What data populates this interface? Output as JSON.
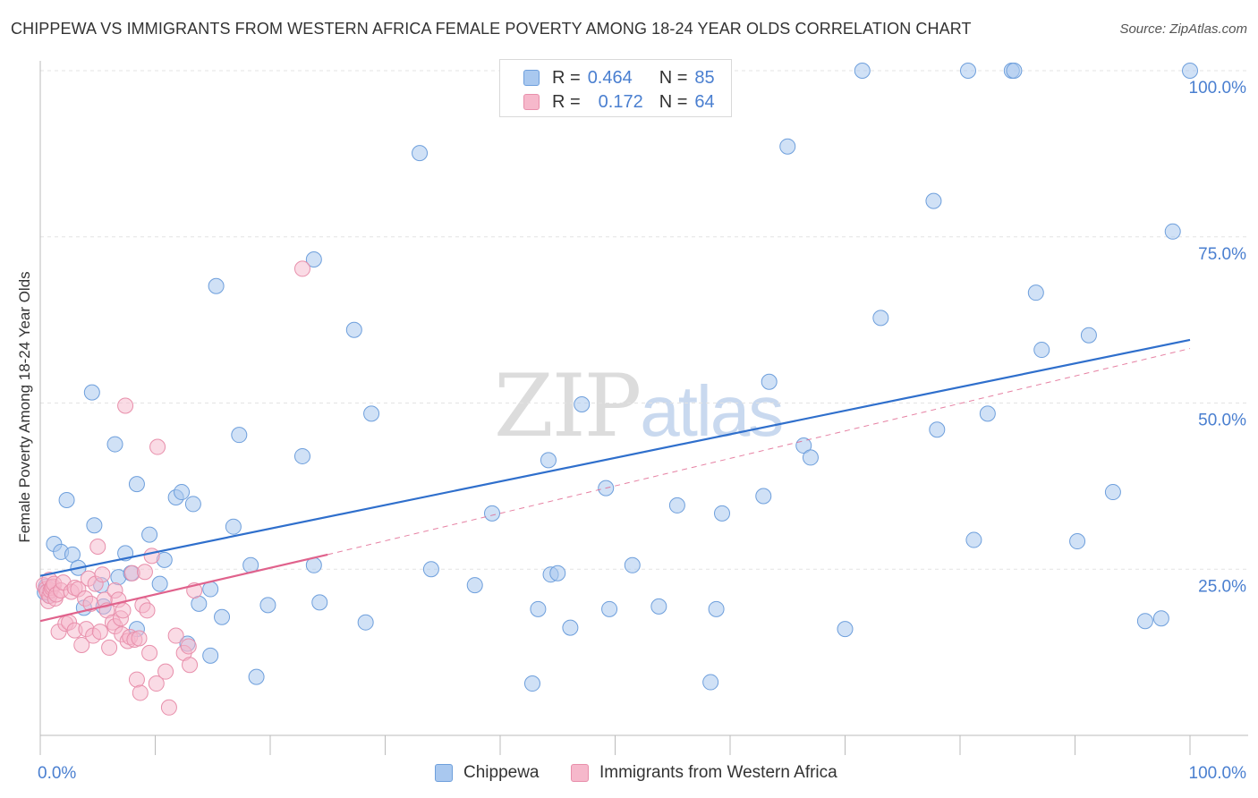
{
  "header": {
    "title": "CHIPPEWA VS IMMIGRANTS FROM WESTERN AFRICA FEMALE POVERTY AMONG 18-24 YEAR OLDS CORRELATION CHART",
    "source": "Source: ZipAtlas.com"
  },
  "watermark": {
    "zip": "ZIP",
    "atlas": "atlas"
  },
  "legend": {
    "rows": [
      {
        "r_label": "R =",
        "r_value": "0.464",
        "n_label": "N =",
        "n_value": "85"
      },
      {
        "r_label": "R =",
        "r_value": "0.172",
        "n_label": "N =",
        "n_value": "64"
      }
    ]
  },
  "bottom_legend": {
    "series1": "Chippewa",
    "series2": "Immigrants from Western Africa"
  },
  "colors": {
    "series1_fill": "#a9c8ef",
    "series1_stroke": "#6e9fdc",
    "series1_line": "#2f6fcc",
    "series2_fill": "#f6b8cb",
    "series2_stroke": "#e88fab",
    "series2_line": "#e0628c",
    "tick_label": "#4a7fd0",
    "grid": "#e3e3e3",
    "axis": "#bbbbbb"
  },
  "chart_data": {
    "type": "scatter",
    "title": "CHIPPEWA VS IMMIGRANTS FROM WESTERN AFRICA FEMALE POVERTY AMONG 18-24 YEAR OLDS CORRELATION CHART",
    "xlabel": "",
    "ylabel": "Female Poverty Among 18-24 Year Olds",
    "xlim": [
      0,
      100
    ],
    "ylim": [
      0,
      100
    ],
    "x_tick_labels": [
      "0.0%",
      "100.0%"
    ],
    "y_tick_labels": [
      {
        "value": 100,
        "label": "100.0%"
      },
      {
        "value": 75,
        "label": "75.0%"
      },
      {
        "value": 50,
        "label": "50.0%"
      },
      {
        "value": 25,
        "label": "25.0%"
      }
    ],
    "series": [
      {
        "name": "Chippewa",
        "r": 0.464,
        "n": 85,
        "trend": {
          "x": [
            0,
            100
          ],
          "y": [
            24.0,
            59.5
          ],
          "style": "solid"
        },
        "points": [
          [
            0.5,
            22.4
          ],
          [
            0.8,
            21.0
          ],
          [
            0.4,
            21.5
          ],
          [
            1.2,
            28.8
          ],
          [
            1.8,
            27.6
          ],
          [
            2.3,
            35.4
          ],
          [
            2.8,
            27.2
          ],
          [
            3.3,
            25.2
          ],
          [
            3.8,
            19.2
          ],
          [
            4.5,
            51.6
          ],
          [
            4.7,
            31.6
          ],
          [
            5.3,
            22.6
          ],
          [
            5.5,
            19.4
          ],
          [
            6.5,
            43.8
          ],
          [
            6.8,
            23.8
          ],
          [
            7.4,
            27.4
          ],
          [
            7.9,
            24.4
          ],
          [
            8.4,
            16.0
          ],
          [
            8.4,
            37.8
          ],
          [
            9.5,
            30.2
          ],
          [
            10.4,
            22.8
          ],
          [
            10.8,
            26.4
          ],
          [
            11.8,
            35.8
          ],
          [
            12.3,
            36.6
          ],
          [
            12.8,
            13.8
          ],
          [
            13.3,
            34.8
          ],
          [
            13.8,
            19.8
          ],
          [
            14.8,
            12.0
          ],
          [
            14.8,
            22.0
          ],
          [
            15.3,
            67.6
          ],
          [
            15.8,
            17.8
          ],
          [
            16.8,
            31.4
          ],
          [
            17.3,
            45.2
          ],
          [
            18.3,
            25.6
          ],
          [
            18.8,
            8.8
          ],
          [
            19.8,
            19.6
          ],
          [
            22.8,
            42.0
          ],
          [
            23.8,
            71.6
          ],
          [
            23.8,
            25.6
          ],
          [
            24.3,
            20.0
          ],
          [
            27.3,
            61.0
          ],
          [
            28.3,
            17.0
          ],
          [
            28.8,
            48.4
          ],
          [
            33.0,
            87.6
          ],
          [
            34.0,
            25.0
          ],
          [
            37.8,
            22.6
          ],
          [
            39.3,
            33.4
          ],
          [
            42.8,
            7.8
          ],
          [
            43.3,
            19.0
          ],
          [
            44.2,
            41.4
          ],
          [
            44.4,
            24.2
          ],
          [
            45.0,
            24.4
          ],
          [
            46.1,
            16.2
          ],
          [
            47.1,
            49.8
          ],
          [
            49.2,
            37.2
          ],
          [
            49.5,
            19.0
          ],
          [
            51.5,
            25.6
          ],
          [
            53.8,
            19.4
          ],
          [
            55.4,
            34.6
          ],
          [
            58.3,
            8.0
          ],
          [
            58.8,
            19.0
          ],
          [
            59.3,
            33.4
          ],
          [
            62.9,
            36.0
          ],
          [
            63.4,
            53.2
          ],
          [
            65.0,
            88.6
          ],
          [
            66.4,
            43.6
          ],
          [
            67.0,
            41.8
          ],
          [
            70.0,
            16.0
          ],
          [
            71.5,
            100.0
          ],
          [
            73.1,
            62.8
          ],
          [
            77.7,
            80.4
          ],
          [
            78.0,
            46.0
          ],
          [
            80.7,
            100.0
          ],
          [
            81.2,
            29.4
          ],
          [
            82.4,
            48.4
          ],
          [
            84.5,
            100.0
          ],
          [
            84.7,
            100.0
          ],
          [
            86.6,
            66.6
          ],
          [
            87.1,
            58.0
          ],
          [
            90.2,
            29.2
          ],
          [
            91.2,
            60.2
          ],
          [
            93.3,
            36.6
          ],
          [
            96.1,
            17.2
          ],
          [
            97.5,
            17.6
          ],
          [
            98.5,
            75.8
          ],
          [
            100.0,
            100.0
          ]
        ]
      },
      {
        "name": "Immigrants from Western Africa",
        "r": 0.172,
        "n": 64,
        "trend": {
          "x": [
            0,
            25
          ],
          "y": [
            17.2,
            27.2
          ],
          "style": "solid",
          "extended": {
            "x": [
              25,
              100
            ],
            "y": [
              27.2,
              58.2
            ],
            "style": "dashed"
          }
        },
        "points": [
          [
            0.3,
            22.6
          ],
          [
            0.5,
            22.0
          ],
          [
            0.6,
            21.6
          ],
          [
            0.7,
            20.2
          ],
          [
            0.8,
            21.0
          ],
          [
            0.8,
            23.4
          ],
          [
            0.9,
            21.8
          ],
          [
            1.0,
            22.2
          ],
          [
            1.1,
            22.4
          ],
          [
            1.2,
            22.8
          ],
          [
            1.3,
            20.6
          ],
          [
            1.4,
            21.2
          ],
          [
            1.6,
            15.6
          ],
          [
            1.8,
            21.8
          ],
          [
            2.0,
            23.0
          ],
          [
            2.2,
            16.8
          ],
          [
            2.5,
            17.0
          ],
          [
            2.7,
            21.6
          ],
          [
            3.0,
            22.2
          ],
          [
            3.0,
            15.8
          ],
          [
            3.3,
            22.0
          ],
          [
            3.6,
            13.6
          ],
          [
            3.9,
            20.6
          ],
          [
            4.0,
            16.0
          ],
          [
            4.2,
            23.6
          ],
          [
            4.4,
            19.8
          ],
          [
            4.6,
            15.0
          ],
          [
            4.8,
            22.8
          ],
          [
            5.0,
            28.4
          ],
          [
            5.2,
            15.6
          ],
          [
            5.4,
            24.2
          ],
          [
            5.6,
            20.4
          ],
          [
            5.8,
            18.8
          ],
          [
            6.0,
            13.2
          ],
          [
            6.3,
            17.0
          ],
          [
            6.5,
            21.8
          ],
          [
            6.5,
            16.4
          ],
          [
            6.8,
            20.4
          ],
          [
            7.0,
            17.6
          ],
          [
            7.1,
            15.2
          ],
          [
            7.2,
            18.8
          ],
          [
            7.4,
            49.6
          ],
          [
            7.6,
            14.2
          ],
          [
            7.8,
            14.8
          ],
          [
            8.0,
            24.4
          ],
          [
            8.2,
            14.4
          ],
          [
            8.4,
            8.4
          ],
          [
            8.6,
            14.6
          ],
          [
            8.7,
            6.4
          ],
          [
            8.9,
            19.6
          ],
          [
            9.1,
            24.6
          ],
          [
            9.3,
            18.8
          ],
          [
            9.5,
            12.4
          ],
          [
            9.7,
            27.0
          ],
          [
            10.1,
            7.8
          ],
          [
            10.2,
            43.4
          ],
          [
            10.9,
            9.6
          ],
          [
            11.2,
            4.2
          ],
          [
            11.8,
            15.0
          ],
          [
            12.5,
            12.4
          ],
          [
            12.9,
            13.4
          ],
          [
            13.0,
            10.6
          ],
          [
            13.4,
            21.8
          ],
          [
            22.8,
            70.2
          ]
        ]
      }
    ]
  }
}
